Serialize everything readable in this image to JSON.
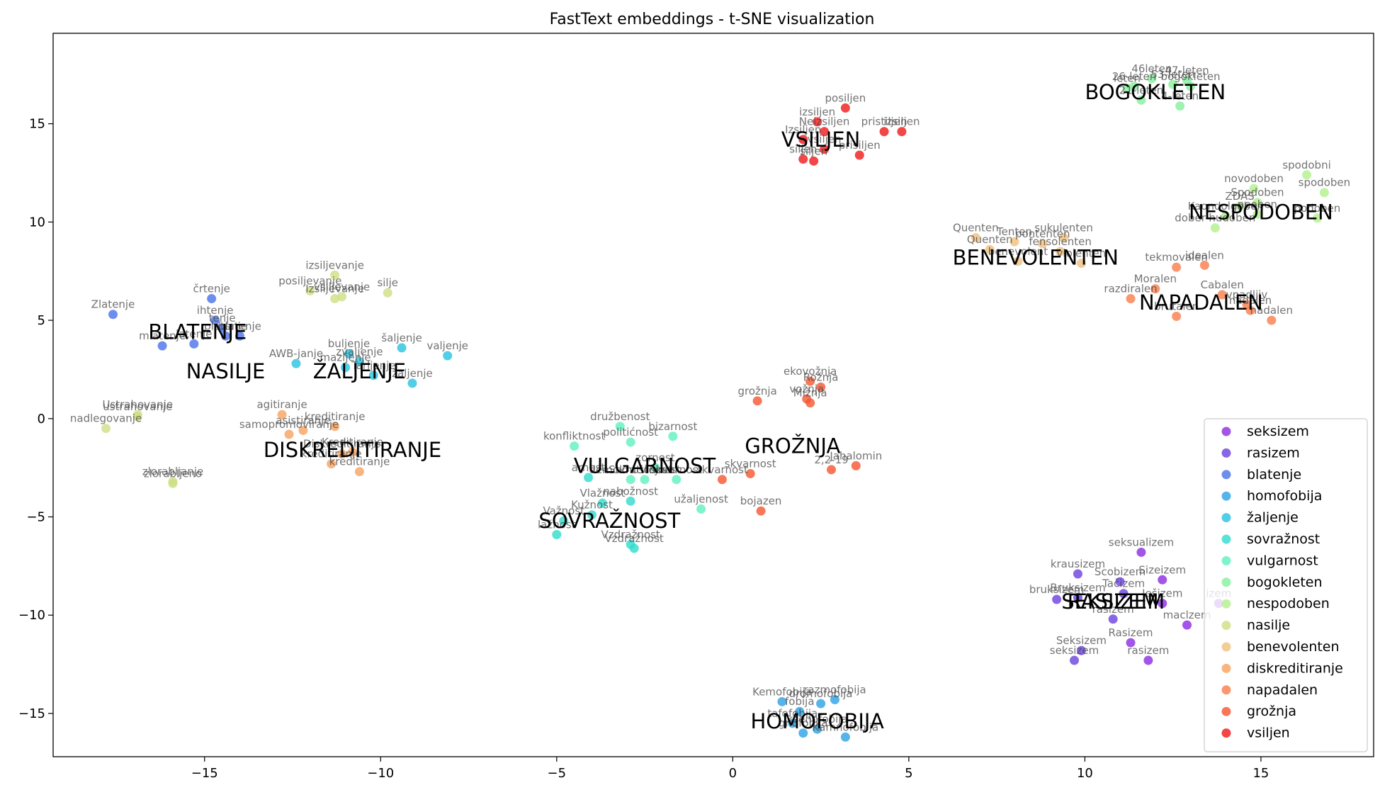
{
  "chart_data": {
    "type": "scatter",
    "title": "FastText embeddings - t-SNE visualization",
    "xlabel": "",
    "ylabel": "",
    "xlim": [
      -19.3,
      18.2
    ],
    "ylim": [
      -17.2,
      19.6
    ],
    "xticks": [
      -15,
      -10,
      -5,
      0,
      5,
      10,
      15
    ],
    "yticks": [
      -15,
      -10,
      -5,
      0,
      5,
      10,
      15
    ],
    "xtick_labels": [
      "−15",
      "−10",
      "−5",
      "0",
      "5",
      "10",
      "15"
    ],
    "ytick_labels": [
      "−15",
      "−10",
      "−5",
      "0",
      "5",
      "10",
      "15"
    ],
    "grid": false,
    "legend_position": "bottom-right",
    "series": [
      {
        "name": "seksizem",
        "color": "#8b2be2",
        "points": [
          [
            11.6,
            -6.8,
            "seksualizem"
          ],
          [
            12.2,
            -8.2,
            "Sizeizem"
          ],
          [
            11.3,
            -11.4,
            "Rasizem"
          ],
          [
            11.8,
            -12.3,
            "rasizem"
          ],
          [
            12.9,
            -10.5,
            "maclzem"
          ],
          [
            12.2,
            -9.4,
            "Iešizem"
          ],
          [
            13.8,
            -9.4,
            "izem"
          ]
        ]
      },
      {
        "name": "rasizem",
        "color": "#6a40e0",
        "points": [
          [
            9.8,
            -7.9,
            "krausizem"
          ],
          [
            11.0,
            -8.3,
            "Scobizem"
          ],
          [
            9.2,
            -9.2,
            "bruksizem"
          ],
          [
            9.8,
            -9.1,
            "Bruksizem"
          ],
          [
            10.8,
            -10.2,
            "rasizem"
          ],
          [
            9.9,
            -11.8,
            "Seksizem"
          ],
          [
            9.7,
            -12.3,
            "seksizem"
          ],
          [
            11.1,
            -8.9,
            "Tačizem"
          ]
        ]
      },
      {
        "name": "blatenje",
        "color": "#4a72ea",
        "points": [
          [
            -17.6,
            5.3,
            "Zlatenje"
          ],
          [
            -14.8,
            6.1,
            "črtenje"
          ],
          [
            -14.5,
            4.6,
            "tenje"
          ],
          [
            -14.7,
            5.0,
            "ihtenje"
          ],
          [
            -16.2,
            3.7,
            "mlatenje"
          ],
          [
            -15.3,
            3.8,
            "latenje"
          ],
          [
            -14.4,
            4.2,
            "platenje"
          ],
          [
            -14.0,
            4.2,
            "blatenje"
          ]
        ]
      },
      {
        "name": "homofobija",
        "color": "#2aa1e5",
        "points": [
          [
            1.4,
            -14.4,
            "Kemofobija"
          ],
          [
            2.5,
            -14.5,
            "dromofobija"
          ],
          [
            2.9,
            -14.3,
            "razmofobija"
          ],
          [
            1.7,
            -15.5,
            "tafofobija"
          ],
          [
            2.0,
            -16.0,
            "gnofobija"
          ],
          [
            2.4,
            -15.8,
            "ksenofobija"
          ],
          [
            3.2,
            -16.2,
            "Kamnofobija"
          ],
          [
            1.9,
            -14.9,
            "fobija"
          ]
        ]
      },
      {
        "name": "žaljenje",
        "color": "#27c2e0",
        "points": [
          [
            -12.4,
            2.8,
            "AWB-janje"
          ],
          [
            -10.9,
            3.3,
            "buljenje"
          ],
          [
            -11.0,
            2.6,
            "mazljenje"
          ],
          [
            -10.2,
            2.2,
            "Tarljenje"
          ],
          [
            -9.4,
            3.6,
            "šaljenje"
          ],
          [
            -8.1,
            3.2,
            "valjenje"
          ],
          [
            -9.1,
            1.8,
            "žaljenje"
          ],
          [
            -10.6,
            2.9,
            "zvaljenje"
          ]
        ]
      },
      {
        "name": "sovražnost",
        "color": "#2fdccd",
        "points": [
          [
            -4.8,
            -5.2,
            "Važnost"
          ],
          [
            -5.0,
            -5.9,
            "lažnost"
          ],
          [
            -4.0,
            -4.9,
            "Kužnost"
          ],
          [
            -3.7,
            -4.3,
            "Vlažnost"
          ],
          [
            -2.9,
            -6.4,
            "Vzdražnost"
          ],
          [
            -2.8,
            -6.6,
            "Vzdražnost"
          ],
          [
            -2.9,
            -4.2,
            "nabožnost"
          ],
          [
            -4.1,
            -3.0,
            "arnost"
          ]
        ]
      },
      {
        "name": "vulgarnost",
        "color": "#5ff0c0",
        "points": [
          [
            -3.2,
            -0.4,
            "družbenost"
          ],
          [
            -2.9,
            -1.2,
            "politićnost"
          ],
          [
            -4.5,
            -1.4,
            "konfliktnost"
          ],
          [
            -1.7,
            -0.9,
            "bizarnost"
          ],
          [
            -2.2,
            -2.5,
            "zornost"
          ],
          [
            -2.5,
            -3.1,
            "Samostojnost"
          ],
          [
            -1.6,
            -3.1,
            "skvarnost"
          ],
          [
            -0.9,
            -4.6,
            "užaljenost"
          ],
          [
            -2.9,
            -3.1,
            "demokratičnost"
          ]
        ]
      },
      {
        "name": "bogokleten",
        "color": "#86f09d",
        "points": [
          [
            11.9,
            17.3,
            "46leten"
          ],
          [
            12.5,
            17.0,
            "53-leten"
          ],
          [
            11.4,
            16.9,
            "26-leten"
          ],
          [
            12.9,
            17.2,
            "47-leten"
          ],
          [
            11.6,
            16.2,
            "21-leten"
          ],
          [
            12.7,
            15.9,
            "4-leten"
          ],
          [
            13.0,
            16.9,
            "bogokleten"
          ],
          [
            11.2,
            16.8,
            "leten"
          ]
        ]
      },
      {
        "name": "nespodoben",
        "color": "#b3f08d",
        "points": [
          [
            16.3,
            12.4,
            "spodobni"
          ],
          [
            14.8,
            11.7,
            "novodoben"
          ],
          [
            16.8,
            11.5,
            "spodoben"
          ],
          [
            14.9,
            11.0,
            "Spodoben"
          ],
          [
            14.0,
            10.3,
            "Kaondolgoben"
          ],
          [
            13.7,
            9.7,
            "dober-hudoben"
          ],
          [
            16.6,
            10.2,
            "podoben"
          ],
          [
            14.9,
            10.4,
            "neoben"
          ],
          [
            14.4,
            10.8,
            "ZDAS"
          ]
        ]
      },
      {
        "name": "nasilje",
        "color": "#cde083",
        "points": [
          [
            -11.3,
            7.3,
            "izsiljevanje"
          ],
          [
            -11.1,
            6.2,
            "vsiljevanje"
          ],
          [
            -12.0,
            6.5,
            "posiljevanje"
          ],
          [
            -11.3,
            6.1,
            "Izsiljevanje"
          ],
          [
            -9.8,
            6.4,
            "silje"
          ],
          [
            -16.9,
            0.2,
            "Ustrahovanje"
          ],
          [
            -16.9,
            0.1,
            "ustrahovanje"
          ],
          [
            -17.8,
            -0.5,
            "nadlegovanje"
          ],
          [
            -15.9,
            -3.2,
            "zlorabljanje"
          ],
          [
            -15.9,
            -3.3,
            "zlorabljeno"
          ]
        ]
      },
      {
        "name": "benevolenten",
        "color": "#f0c07e",
        "points": [
          [
            6.9,
            9.2,
            "Quenten"
          ],
          [
            8.0,
            9.0,
            "Tenten"
          ],
          [
            8.8,
            8.9,
            "pontenten"
          ],
          [
            9.4,
            9.2,
            "sukulenten"
          ],
          [
            7.3,
            8.6,
            "Quenten"
          ],
          [
            8.1,
            8.0,
            "benevolent"
          ],
          [
            9.9,
            7.9,
            "violenten"
          ],
          [
            9.3,
            8.5,
            "fensolenten"
          ]
        ]
      },
      {
        "name": "diskreditiranje",
        "color": "#f6a360",
        "points": [
          [
            -12.8,
            0.2,
            "agitiranje"
          ],
          [
            -12.2,
            -0.6,
            "asistiranje"
          ],
          [
            -11.3,
            -0.4,
            "kreditiranje"
          ],
          [
            -12.6,
            -0.8,
            "samopromoviranje"
          ],
          [
            -11.1,
            -1.8,
            "Diskreditiranje"
          ],
          [
            -10.8,
            -1.7,
            "Kreditiranje"
          ],
          [
            -11.4,
            -2.3,
            "kreditiranje"
          ],
          [
            -10.6,
            -2.7,
            "kreditiranje"
          ]
        ]
      },
      {
        "name": "napadalen",
        "color": "#fa7c4a",
        "points": [
          [
            12.6,
            7.7,
            "tekmovalen"
          ],
          [
            13.4,
            7.8,
            "idealen"
          ],
          [
            11.3,
            6.1,
            "razdiralen"
          ],
          [
            12.0,
            6.6,
            "Moralen"
          ],
          [
            12.6,
            5.2,
            "brutalen"
          ],
          [
            13.9,
            6.3,
            "Cabalen"
          ],
          [
            14.7,
            5.5,
            "nadalen"
          ],
          [
            15.3,
            5.0,
            "nadalen"
          ],
          [
            14.6,
            5.8,
            "vpadljiv"
          ]
        ]
      },
      {
        "name": "grožnja",
        "color": "#f5552e",
        "points": [
          [
            2.2,
            1.9,
            "ekovožnja"
          ],
          [
            2.5,
            1.6,
            "Rožnja"
          ],
          [
            0.7,
            0.9,
            "grožnja"
          ],
          [
            2.1,
            1.0,
            "vožnja"
          ],
          [
            2.2,
            0.8,
            "Mižnja"
          ],
          [
            2.8,
            -2.6,
            "2,2-19"
          ],
          [
            3.5,
            -2.4,
            "Jahalomin"
          ],
          [
            0.5,
            -2.8,
            "skvarnost"
          ],
          [
            -0.3,
            -3.1,
            "skvarnost"
          ],
          [
            0.8,
            -4.7,
            "bojazen"
          ]
        ]
      },
      {
        "name": "vsiljen",
        "color": "#f01818",
        "points": [
          [
            3.2,
            15.8,
            "posiljen"
          ],
          [
            2.4,
            15.1,
            "izsiljen"
          ],
          [
            2.6,
            14.6,
            "Neizsiljen"
          ],
          [
            2.0,
            14.2,
            "Izsiljen"
          ],
          [
            4.3,
            14.6,
            "pristiljen"
          ],
          [
            4.8,
            14.6,
            "izsiljen"
          ],
          [
            3.6,
            13.4,
            "prisiljen"
          ],
          [
            2.0,
            13.2,
            "siljen"
          ],
          [
            2.3,
            13.1,
            "siljen"
          ],
          [
            2.6,
            13.7,
            "vsiljen"
          ]
        ]
      }
    ],
    "cluster_labels": [
      {
        "text": "BOGOKLETEN",
        "x": 12.0,
        "y": 16.6
      },
      {
        "text": "VSILJEN",
        "x": 2.5,
        "y": 14.2
      },
      {
        "text": "NESPODOBEN",
        "x": 15.0,
        "y": 10.5
      },
      {
        "text": "BENEVOLENTEN",
        "x": 8.6,
        "y": 8.2
      },
      {
        "text": "NAPADALEN",
        "x": 13.3,
        "y": 5.9
      },
      {
        "text": "BLATENJE",
        "x": -15.2,
        "y": 4.4
      },
      {
        "text": "NASILJE",
        "x": -14.4,
        "y": 2.4
      },
      {
        "text": "ŽALJENJE",
        "x": -10.6,
        "y": 2.4
      },
      {
        "text": "GROŽNJA",
        "x": 1.7,
        "y": -1.4
      },
      {
        "text": "DISKREDITIRANJE",
        "x": -10.8,
        "y": -1.6
      },
      {
        "text": "VULGARNOST",
        "x": -2.5,
        "y": -2.4
      },
      {
        "text": "SOVRAŽNOST",
        "x": -3.5,
        "y": -5.2
      },
      {
        "text": "RASIZEM",
        "x": 10.8,
        "y": -9.3
      },
      {
        "text": "SEKSIZEM",
        "x": 10.8,
        "y": -9.3
      },
      {
        "text": "HOMOFOBIJA",
        "x": 2.4,
        "y": -15.4
      }
    ]
  }
}
